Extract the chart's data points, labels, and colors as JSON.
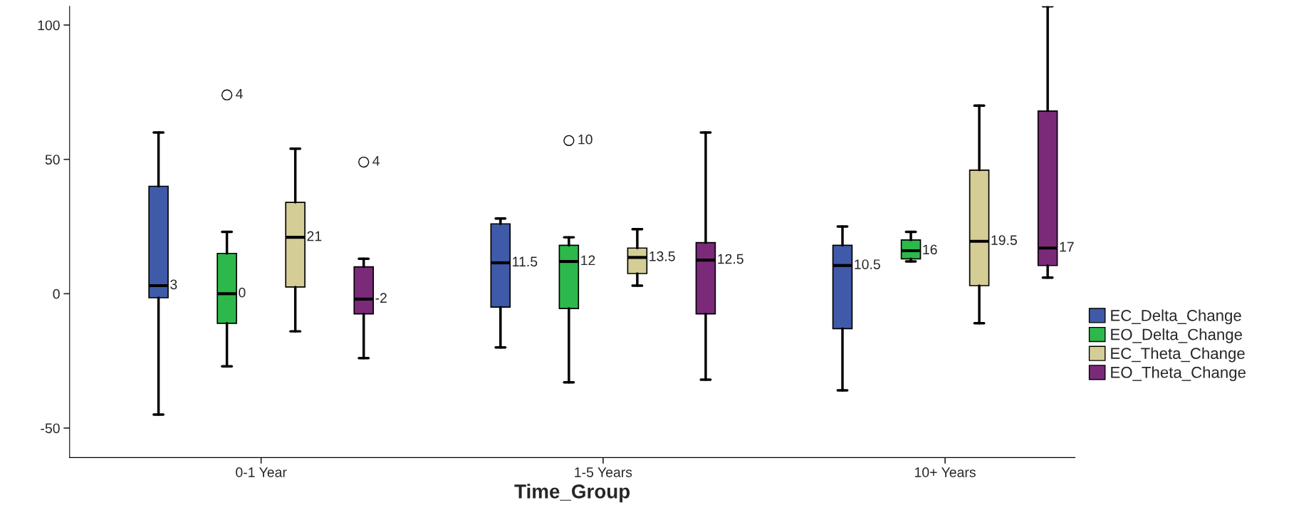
{
  "chart_data": {
    "type": "box",
    "xlabel": "Time_Group",
    "categories": [
      "0-1 Year",
      "1-5 Years",
      "10+ Years"
    ],
    "ylim": [
      -61,
      107
    ],
    "yticks": [
      -50,
      0,
      50,
      100
    ],
    "grid": false,
    "legend": "right",
    "series": [
      {
        "name": "EC_Delta_Change",
        "color": "#3f5aa8",
        "value_labels": [
          "3",
          "11.5",
          "10.5"
        ],
        "boxes": [
          {
            "low": -45,
            "q1": -1.5,
            "median": 3,
            "q3": 40,
            "high": 60
          },
          {
            "low": -20,
            "q1": -5,
            "median": 11.5,
            "q3": 26,
            "high": 28
          },
          {
            "low": -36,
            "q1": -13,
            "median": 10.5,
            "q3": 18,
            "high": 25
          }
        ]
      },
      {
        "name": "EO_Delta_Change",
        "color": "#2db84b",
        "value_labels": [
          "0",
          "12",
          "16"
        ],
        "boxes": [
          {
            "low": -27,
            "q1": -11,
            "median": 0,
            "q3": 15,
            "high": 23,
            "outliers": [
              74
            ]
          },
          {
            "low": -33,
            "q1": -5.5,
            "median": 12,
            "q3": 18,
            "high": 21,
            "outliers": [
              57
            ]
          },
          {
            "low": 12,
            "q1": 13,
            "median": 16,
            "q3": 20,
            "high": 23
          }
        ]
      },
      {
        "name": "EC_Theta_Change",
        "color": "#d4cd96",
        "value_labels": [
          "21",
          "13.5",
          "19.5"
        ],
        "boxes": [
          {
            "low": -14,
            "q1": 2.5,
            "median": 21,
            "q3": 34,
            "high": 54
          },
          {
            "low": 3,
            "q1": 7.5,
            "median": 13.5,
            "q3": 17,
            "high": 24
          },
          {
            "low": -11,
            "q1": 3,
            "median": 19.5,
            "q3": 46,
            "high": 70
          }
        ]
      },
      {
        "name": "EO_Theta_Change",
        "color": "#7b2a7a",
        "value_labels": [
          "-2",
          "12.5",
          "17"
        ],
        "boxes": [
          {
            "low": -24,
            "q1": -7.5,
            "median": -2,
            "q3": 10,
            "high": 13,
            "outliers": [
              49
            ]
          },
          {
            "low": -32,
            "q1": -7.5,
            "median": 12.5,
            "q3": 19,
            "high": 60
          },
          {
            "low": 6,
            "q1": 10.5,
            "median": 17,
            "q3": 68,
            "high": 107
          }
        ]
      }
    ],
    "annotations": [
      "4",
      "4",
      "10"
    ]
  }
}
